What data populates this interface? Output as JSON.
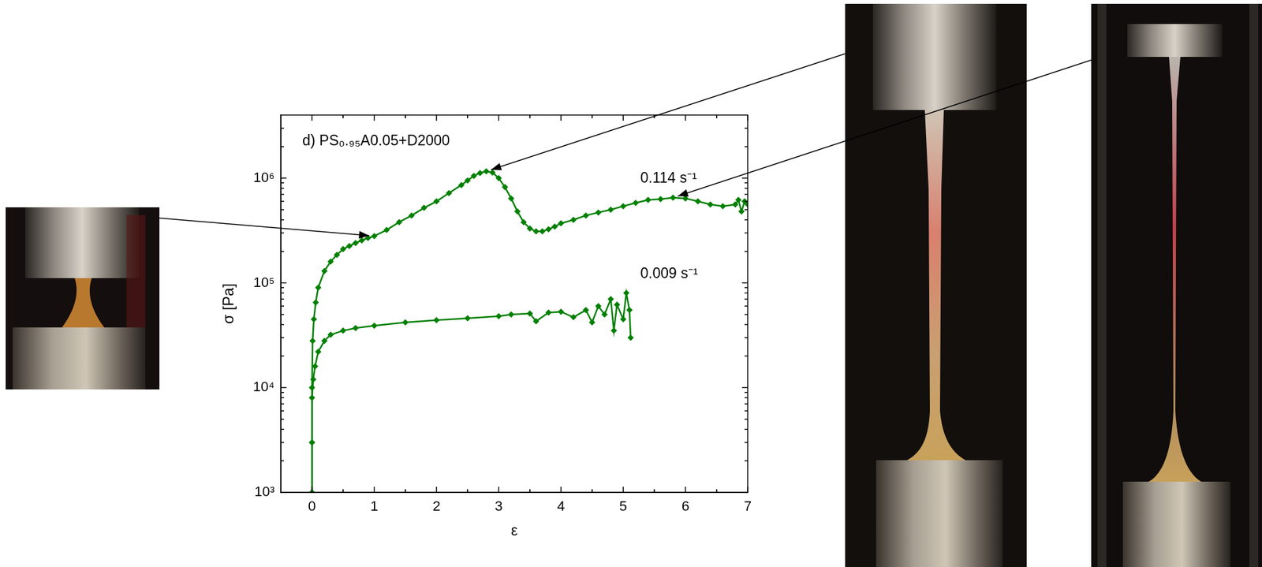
{
  "chart_data": {
    "type": "scatter",
    "title": "d) PS₀.₉₅A0.05+D2000",
    "x_label": "ε",
    "y_label": "σ [Pa]",
    "xlim": [
      -0.5,
      7
    ],
    "xticks": [
      0,
      1,
      2,
      3,
      4,
      5,
      6,
      7
    ],
    "ylim": [
      1000,
      4000000
    ],
    "yticks": [
      {
        "value": 1000,
        "label": "10³"
      },
      {
        "value": 10000,
        "label": "10⁴"
      },
      {
        "value": 100000,
        "label": "10⁵"
      },
      {
        "value": 1000000,
        "label": "10⁶"
      }
    ],
    "log": "y",
    "grid": false,
    "marker": "diamond",
    "line_style": "solid",
    "series": [
      {
        "name": "0.114 s⁻¹",
        "color": "#008000",
        "x": [
          0,
          0,
          0,
          0.01,
          0.03,
          0.06,
          0.1,
          0.2,
          0.3,
          0.4,
          0.5,
          0.6,
          0.7,
          0.8,
          0.9,
          1.0,
          1.2,
          1.4,
          1.6,
          1.8,
          2.0,
          2.2,
          2.4,
          2.5,
          2.6,
          2.7,
          2.8,
          2.9,
          3.0,
          3.1,
          3.2,
          3.3,
          3.4,
          3.5,
          3.6,
          3.7,
          3.8,
          3.9,
          4.0,
          4.2,
          4.4,
          4.6,
          4.8,
          5.0,
          5.2,
          5.4,
          5.6,
          5.8,
          6.0,
          6.2,
          6.4,
          6.6,
          6.8,
          6.85,
          6.9,
          6.95,
          7.0
        ],
        "values": [
          1000,
          3000,
          10000,
          28000,
          45000,
          65000,
          90000,
          130000,
          160000,
          185000,
          210000,
          225000,
          240000,
          255000,
          268000,
          280000,
          320000,
          380000,
          440000,
          520000,
          600000,
          720000,
          860000,
          950000,
          1050000,
          1120000,
          1160000,
          1130000,
          1000000,
          820000,
          640000,
          480000,
          380000,
          330000,
          310000,
          310000,
          325000,
          345000,
          370000,
          400000,
          440000,
          470000,
          500000,
          540000,
          580000,
          620000,
          630000,
          650000,
          640000,
          600000,
          560000,
          540000,
          560000,
          620000,
          480000,
          600000,
          560000
        ]
      },
      {
        "name": "0.009 s⁻¹",
        "color": "#008000",
        "x": [
          0,
          0,
          0,
          0.02,
          0.05,
          0.1,
          0.2,
          0.3,
          0.5,
          0.7,
          1.0,
          1.5,
          2.0,
          2.5,
          3.0,
          3.2,
          3.5,
          3.6,
          3.8,
          4.0,
          4.2,
          4.4,
          4.5,
          4.6,
          4.7,
          4.8,
          4.85,
          4.9,
          5.0,
          5.05,
          5.1,
          5.12
        ],
        "values": [
          1000,
          3000,
          8000,
          12000,
          16000,
          22000,
          28000,
          32000,
          35000,
          37000,
          39000,
          42000,
          44000,
          46000,
          48000,
          50000,
          51000,
          43000,
          52000,
          53000,
          47000,
          55000,
          42000,
          60000,
          50000,
          70000,
          35000,
          62000,
          45000,
          80000,
          55000,
          30000
        ]
      }
    ]
  }
}
